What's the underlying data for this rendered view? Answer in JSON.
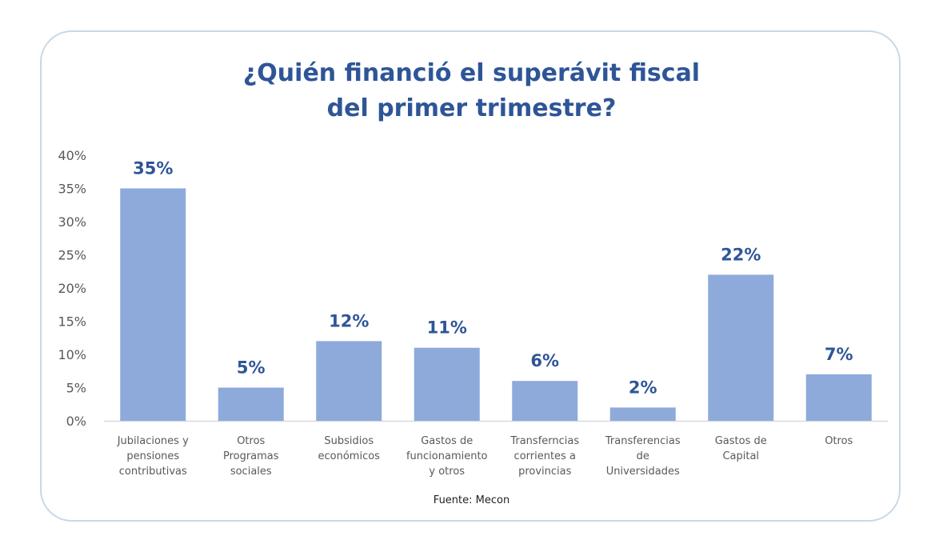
{
  "colors": {
    "bar": "#8eaadb",
    "title": "#2e5597",
    "data_label": "#2e5597",
    "axis_text": "#595959",
    "baseline": "#d9d9d9",
    "card_border": "#c9d7e6"
  },
  "chart_data": {
    "type": "bar",
    "title_lines": [
      "¿Quién financió el superávit fiscal",
      "del primer trimestre?"
    ],
    "categories": [
      [
        "Jubilaciones y",
        "pensiones",
        "contributivas"
      ],
      [
        "Otros",
        "Programas",
        "sociales"
      ],
      [
        "Subsidios",
        "económicos"
      ],
      [
        "Gastos de",
        "funcionamiento",
        "y otros"
      ],
      [
        "Transferncias",
        "corrientes a",
        "provincias"
      ],
      [
        "Transferencias",
        "de",
        "Universidades"
      ],
      [
        "Gastos de",
        "Capital"
      ],
      [
        "Otros"
      ]
    ],
    "values": [
      35,
      5,
      12,
      11,
      6,
      2,
      22,
      7
    ],
    "data_labels": [
      "35%",
      "5%",
      "12%",
      "11%",
      "6%",
      "2%",
      "22%",
      "7%"
    ],
    "ylim": [
      0,
      40
    ],
    "yticks": [
      0,
      5,
      10,
      15,
      20,
      25,
      30,
      35,
      40
    ],
    "ytick_labels": [
      "0%",
      "5%",
      "10%",
      "15%",
      "20%",
      "25%",
      "30%",
      "35%",
      "40%"
    ],
    "grid": false,
    "legend": "none",
    "source_note": "Fuente: Mecon"
  }
}
